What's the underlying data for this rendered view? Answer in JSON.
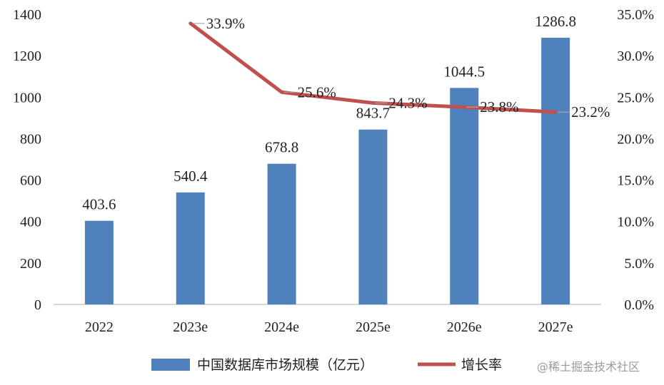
{
  "chart_data": {
    "type": "bar",
    "categories": [
      "2022",
      "2023e",
      "2024e",
      "2025e",
      "2026e",
      "2027e"
    ],
    "series": [
      {
        "name": "中国数据库市场规模（亿元）",
        "type": "bar",
        "axis": "left",
        "values": [
          403.6,
          540.4,
          678.8,
          843.7,
          1044.5,
          1286.8
        ],
        "labels": [
          "403.6",
          "540.4",
          "678.8",
          "843.7",
          "1044.5",
          "1286.8"
        ],
        "color": "#4f81bd"
      },
      {
        "name": "增长率",
        "type": "line",
        "axis": "right",
        "values": [
          null,
          33.9,
          25.6,
          24.3,
          23.8,
          23.2
        ],
        "labels": [
          "",
          "33.9%",
          "25.6%",
          "24.3%",
          "23.8%",
          "23.2%"
        ],
        "color": "#c0504d"
      }
    ],
    "y_left": {
      "ylim": [
        0,
        1400
      ],
      "ticks": [
        "0",
        "200",
        "400",
        "600",
        "800",
        "1000",
        "1200",
        "1400"
      ]
    },
    "y_right": {
      "ylim": [
        0,
        35
      ],
      "ticks": [
        "0.0%",
        "5.0%",
        "10.0%",
        "15.0%",
        "20.0%",
        "25.0%",
        "30.0%",
        "35.0%"
      ]
    },
    "grid": false,
    "legend": "bottom"
  },
  "watermark": "@稀土掘金技术社区"
}
